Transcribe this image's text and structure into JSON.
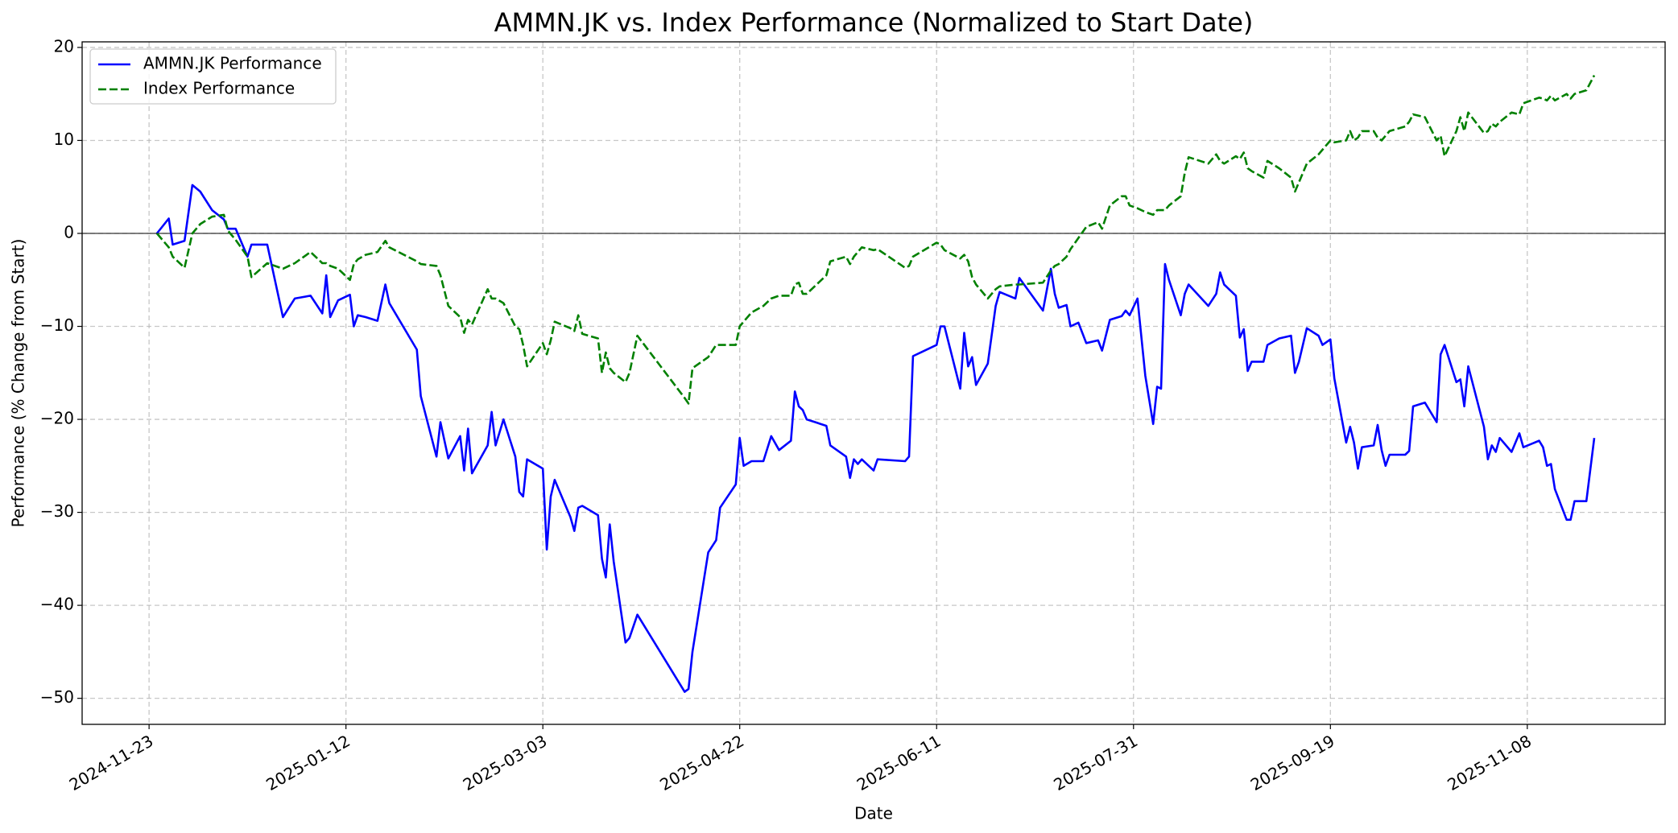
{
  "chart_data": {
    "type": "line",
    "title": "AMMN.JK vs. Index Performance (Normalized to Start Date)",
    "xlabel": "Date",
    "ylabel": "Performance (% Change from Start)",
    "x": [
      "2024-11-25",
      "2024-11-28",
      "2024-11-29",
      "2024-12-02",
      "2024-12-04",
      "2024-12-06",
      "2024-12-09",
      "2024-12-12",
      "2024-12-13",
      "2024-12-15",
      "2024-12-18",
      "2024-12-19",
      "2024-12-23",
      "2024-12-27",
      "2024-12-30",
      "2025-01-03",
      "2025-01-06",
      "2025-01-07",
      "2025-01-08",
      "2025-01-10",
      "2025-01-13",
      "2025-01-14",
      "2025-01-15",
      "2025-01-17",
      "2025-01-20",
      "2025-01-22",
      "2025-01-23",
      "2025-01-30",
      "2025-01-31",
      "2025-02-04",
      "2025-02-05",
      "2025-02-07",
      "2025-02-10",
      "2025-02-11",
      "2025-02-12",
      "2025-02-13",
      "2025-02-17",
      "2025-02-18",
      "2025-02-19",
      "2025-02-21",
      "2025-02-24",
      "2025-02-25",
      "2025-02-26",
      "2025-02-27",
      "2025-03-03",
      "2025-03-04",
      "2025-03-05",
      "2025-03-06",
      "2025-03-10",
      "2025-03-11",
      "2025-03-12",
      "2025-03-13",
      "2025-03-17",
      "2025-03-18",
      "2025-03-19",
      "2025-03-20",
      "2025-03-21",
      "2025-03-24",
      "2025-03-25",
      "2025-03-27",
      "2025-04-08",
      "2025-04-09",
      "2025-04-10",
      "2025-04-14",
      "2025-04-16",
      "2025-04-17",
      "2025-04-21",
      "2025-04-22",
      "2025-04-23",
      "2025-04-25",
      "2025-04-28",
      "2025-04-30",
      "2025-05-02",
      "2025-05-05",
      "2025-05-06",
      "2025-05-07",
      "2025-05-08",
      "2025-05-09",
      "2025-05-14",
      "2025-05-15",
      "2025-05-19",
      "2025-05-20",
      "2025-05-21",
      "2025-05-22",
      "2025-05-23",
      "2025-05-26",
      "2025-05-27",
      "2025-06-03",
      "2025-06-04",
      "2025-06-05",
      "2025-06-11",
      "2025-06-12",
      "2025-06-13",
      "2025-06-17",
      "2025-06-18",
      "2025-06-19",
      "2025-06-20",
      "2025-06-21",
      "2025-06-24",
      "2025-06-26",
      "2025-06-27",
      "2025-07-01",
      "2025-07-02",
      "2025-07-08",
      "2025-07-10",
      "2025-07-11",
      "2025-07-12",
      "2025-07-14",
      "2025-07-15",
      "2025-07-17",
      "2025-07-19",
      "2025-07-22",
      "2025-07-23",
      "2025-07-25",
      "2025-07-28",
      "2025-07-29",
      "2025-07-30",
      "2025-08-01",
      "2025-08-03",
      "2025-08-05",
      "2025-08-06",
      "2025-08-07",
      "2025-08-08",
      "2025-08-09",
      "2025-08-12",
      "2025-08-13",
      "2025-08-14",
      "2025-08-19",
      "2025-08-21",
      "2025-08-22",
      "2025-08-23",
      "2025-08-26",
      "2025-08-27",
      "2025-08-28",
      "2025-08-29",
      "2025-08-30",
      "2025-09-02",
      "2025-09-03",
      "2025-09-06",
      "2025-09-09",
      "2025-09-10",
      "2025-09-11",
      "2025-09-13",
      "2025-09-16",
      "2025-09-17",
      "2025-09-19",
      "2025-09-20",
      "2025-09-23",
      "2025-09-24",
      "2025-09-25",
      "2025-09-26",
      "2025-09-27",
      "2025-09-30",
      "2025-10-01",
      "2025-10-02",
      "2025-10-03",
      "2025-10-04",
      "2025-10-08",
      "2025-10-09",
      "2025-10-10",
      "2025-10-13",
      "2025-10-16",
      "2025-10-17",
      "2025-10-18",
      "2025-10-21",
      "2025-10-22",
      "2025-10-23",
      "2025-10-24",
      "2025-10-28",
      "2025-10-29",
      "2025-10-30",
      "2025-10-31",
      "2025-11-01",
      "2025-11-04",
      "2025-11-06",
      "2025-11-07",
      "2025-11-11",
      "2025-11-12",
      "2025-11-13",
      "2025-11-14",
      "2025-11-15",
      "2025-11-18",
      "2025-11-19",
      "2025-11-20",
      "2025-11-23",
      "2025-11-25"
    ],
    "series": [
      {
        "name": "AMMN.JK Performance",
        "color": "#0000ff",
        "dash": false,
        "values": [
          0,
          1.6,
          -1.2,
          -0.8,
          5.2,
          4.5,
          2.5,
          1.5,
          0.5,
          0.5,
          -2.5,
          -1.2,
          -1.2,
          -9,
          -7,
          -6.7,
          -8.6,
          -4.5,
          -9,
          -7.2,
          -6.6,
          -10,
          -8.8,
          -9,
          -9.4,
          -5.5,
          -7.5,
          -12.5,
          -17.5,
          -24,
          -20.3,
          -24.2,
          -21.8,
          -25.5,
          -21,
          -25.8,
          -22.8,
          -19.2,
          -22.8,
          -20,
          -24,
          -27.8,
          -28.3,
          -24.3,
          -25.3,
          -34,
          -28.3,
          -26.5,
          -30.5,
          -32,
          -29.5,
          -29.3,
          -30.3,
          -35,
          -37,
          -31.3,
          -35.3,
          -44,
          -43.5,
          -41,
          -49.3,
          -49,
          -45,
          -34.3,
          -33,
          -29.5,
          -27,
          -22,
          -25,
          -24.5,
          -24.5,
          -21.8,
          -23.3,
          -22.3,
          -17,
          -18.6,
          -19,
          -20,
          -20.7,
          -22.8,
          -24,
          -26.3,
          -24.3,
          -24.8,
          -24.3,
          -25.5,
          -24.3,
          -24.5,
          -24,
          -13.2,
          -12,
          -10,
          -10,
          -16.7,
          -10.7,
          -14.3,
          -13.3,
          -16.3,
          -14,
          -7.8,
          -6.3,
          -7,
          -4.8,
          -8.3,
          -3.8,
          -6.5,
          -8,
          -7.7,
          -10,
          -9.6,
          -11.8,
          -11.5,
          -12.6,
          -9.3,
          -8.9,
          -8.3,
          -8.8,
          -7,
          -15.3,
          -20.5,
          -16.5,
          -16.7,
          -3.3,
          -5,
          -8.8,
          -6.5,
          -5.5,
          -7.8,
          -6.5,
          -4.2,
          -5.5,
          -6.7,
          -11.2,
          -10.3,
          -14.8,
          -13.8,
          -13.8,
          -12,
          -11.3,
          -11,
          -15,
          -13.8,
          -10.2,
          -11,
          -12,
          -11.4,
          -15.6,
          -22.5,
          -20.8,
          -22.5,
          -25.3,
          -23,
          -22.8,
          -20.6,
          -23.3,
          -25,
          -23.8,
          -23.8,
          -23.4,
          -18.6,
          -18.2,
          -20.3,
          -13,
          -12,
          -16,
          -15.7,
          -18.6,
          -14.3,
          -20.8,
          -24.3,
          -22.8,
          -23.5,
          -22,
          -23.5,
          -21.5,
          -23,
          -22.3,
          -23,
          -25,
          -24.8,
          -27.5,
          -30.8,
          -30.8,
          -28.8,
          -28.8,
          -22
        ]
      },
      {
        "name": "Index Performance",
        "color": "#008000",
        "dash": true,
        "values": [
          0,
          -1.5,
          -2.5,
          -3.7,
          0,
          1,
          1.8,
          2,
          0.3,
          -0.7,
          -2.5,
          -4.7,
          -3.2,
          -3.8,
          -3.2,
          -2,
          -3.2,
          -3.2,
          -3.5,
          -3.8,
          -5,
          -3.3,
          -2.8,
          -2.3,
          -2,
          -0.8,
          -1.5,
          -3,
          -3.3,
          -3.5,
          -4.5,
          -7.8,
          -9,
          -10.7,
          -9.3,
          -9.8,
          -6,
          -7,
          -7,
          -7.5,
          -10,
          -10.3,
          -12,
          -14.3,
          -11.8,
          -13,
          -11.5,
          -9.5,
          -10.2,
          -10.5,
          -8.8,
          -10.8,
          -11.3,
          -15,
          -12.8,
          -14.5,
          -15,
          -16,
          -15,
          -11,
          -17.7,
          -18.3,
          -14.5,
          -13.3,
          -12,
          -12,
          -12,
          -10,
          -9.5,
          -8.5,
          -7.8,
          -7,
          -6.7,
          -6.7,
          -5.5,
          -5.3,
          -6.5,
          -6.5,
          -4.5,
          -3,
          -2.5,
          -3.3,
          -2.5,
          -2,
          -1.5,
          -1.8,
          -1.7,
          -3.7,
          -3.5,
          -2.5,
          -1,
          -1.2,
          -1.8,
          -2.7,
          -2.3,
          -3,
          -4.7,
          -5.5,
          -7,
          -6,
          -5.7,
          -5.5,
          -5.5,
          -5.3,
          -4,
          -3.5,
          -3.3,
          -2.5,
          -1.7,
          -0.5,
          0.7,
          1.2,
          0.5,
          3,
          4,
          4,
          3,
          2.7,
          2.3,
          2,
          2.5,
          2.5,
          2.5,
          3,
          4,
          6.5,
          8.2,
          7.5,
          8.5,
          7.8,
          7.5,
          8.3,
          8,
          8.7,
          7,
          6.7,
          6,
          7.8,
          7,
          6,
          4.5,
          5.5,
          7.5,
          8.5,
          9,
          10,
          9.8,
          10,
          11,
          10,
          10.3,
          11,
          11,
          10.3,
          10,
          10.5,
          11,
          11.5,
          12,
          12.8,
          12.5,
          10,
          10.5,
          8.3,
          11,
          12.5,
          11,
          13,
          10.8,
          11,
          11.8,
          11.5,
          12,
          13,
          12.8,
          14,
          14.6,
          14.5,
          14.3,
          14.8,
          14.3,
          15,
          14.5,
          15,
          15.4,
          17
        ]
      }
    ],
    "reference_line": 0,
    "xlim": [
      "2024-11-06",
      "2025-12-13"
    ],
    "xticks": [
      "2024-11-23",
      "2025-01-12",
      "2025-03-03",
      "2025-04-22",
      "2025-06-11",
      "2025-07-31",
      "2025-09-19",
      "2025-11-08"
    ],
    "ylim": [
      -52.8,
      20.6
    ],
    "yticks": [
      {
        "value": -50,
        "label": "−50"
      },
      {
        "value": -40,
        "label": "−40"
      },
      {
        "value": -30,
        "label": "−30"
      },
      {
        "value": -20,
        "label": "−20"
      },
      {
        "value": -10,
        "label": "−10"
      },
      0,
      10,
      20
    ],
    "grid": true,
    "legend": "upper left"
  }
}
